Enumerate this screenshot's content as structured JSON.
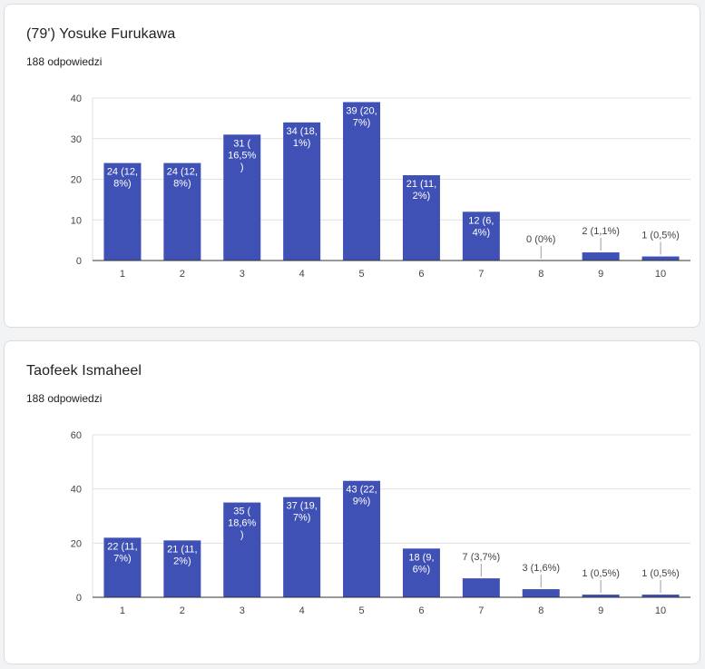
{
  "response_label": "188 odpowiedzi",
  "bar_color": "#3f51b5",
  "chart_data": [
    {
      "type": "bar",
      "title": "(79') Yosuke Furukawa",
      "subtitle": "188 odpowiedzi",
      "categories": [
        "1",
        "2",
        "3",
        "4",
        "5",
        "6",
        "7",
        "8",
        "9",
        "10"
      ],
      "values": [
        24,
        24,
        31,
        34,
        39,
        21,
        12,
        0,
        2,
        1
      ],
      "data_labels": [
        [
          "24 (12,",
          "8%)"
        ],
        [
          "24 (12,",
          "8%)"
        ],
        [
          "31 (",
          "16,5%",
          ")"
        ],
        [
          "34 (18,",
          "1%)"
        ],
        [
          "39 (20,",
          "7%)"
        ],
        [
          "21 (11,",
          "2%)"
        ],
        [
          "12 (6,",
          "4%)"
        ],
        [
          "0 (0%)"
        ],
        [
          "2 (1,1%)"
        ],
        [
          "1 (0,5%)"
        ]
      ],
      "y_ticks": [
        0,
        10,
        20,
        30,
        40
      ],
      "ylim": [
        0,
        40
      ],
      "grid": true,
      "legend": "none"
    },
    {
      "type": "bar",
      "title": "Taofeek Ismaheel",
      "subtitle": "188 odpowiedzi",
      "categories": [
        "1",
        "2",
        "3",
        "4",
        "5",
        "6",
        "7",
        "8",
        "9",
        "10"
      ],
      "values": [
        22,
        21,
        35,
        37,
        43,
        18,
        7,
        3,
        1,
        1
      ],
      "data_labels": [
        [
          "22 (11,",
          "7%)"
        ],
        [
          "21 (11,",
          "2%)"
        ],
        [
          "35 (",
          "18,6%",
          ")"
        ],
        [
          "37 (19,",
          "7%)"
        ],
        [
          "43 (22,",
          "9%)"
        ],
        [
          "18 (9,",
          "6%)"
        ],
        [
          "7 (3,7%)"
        ],
        [
          "3 (1,6%)"
        ],
        [
          "1 (0,5%)"
        ],
        [
          "1 (0,5%)"
        ]
      ],
      "y_ticks": [
        0,
        20,
        40,
        60
      ],
      "ylim": [
        0,
        60
      ],
      "grid": true,
      "legend": "none"
    }
  ]
}
